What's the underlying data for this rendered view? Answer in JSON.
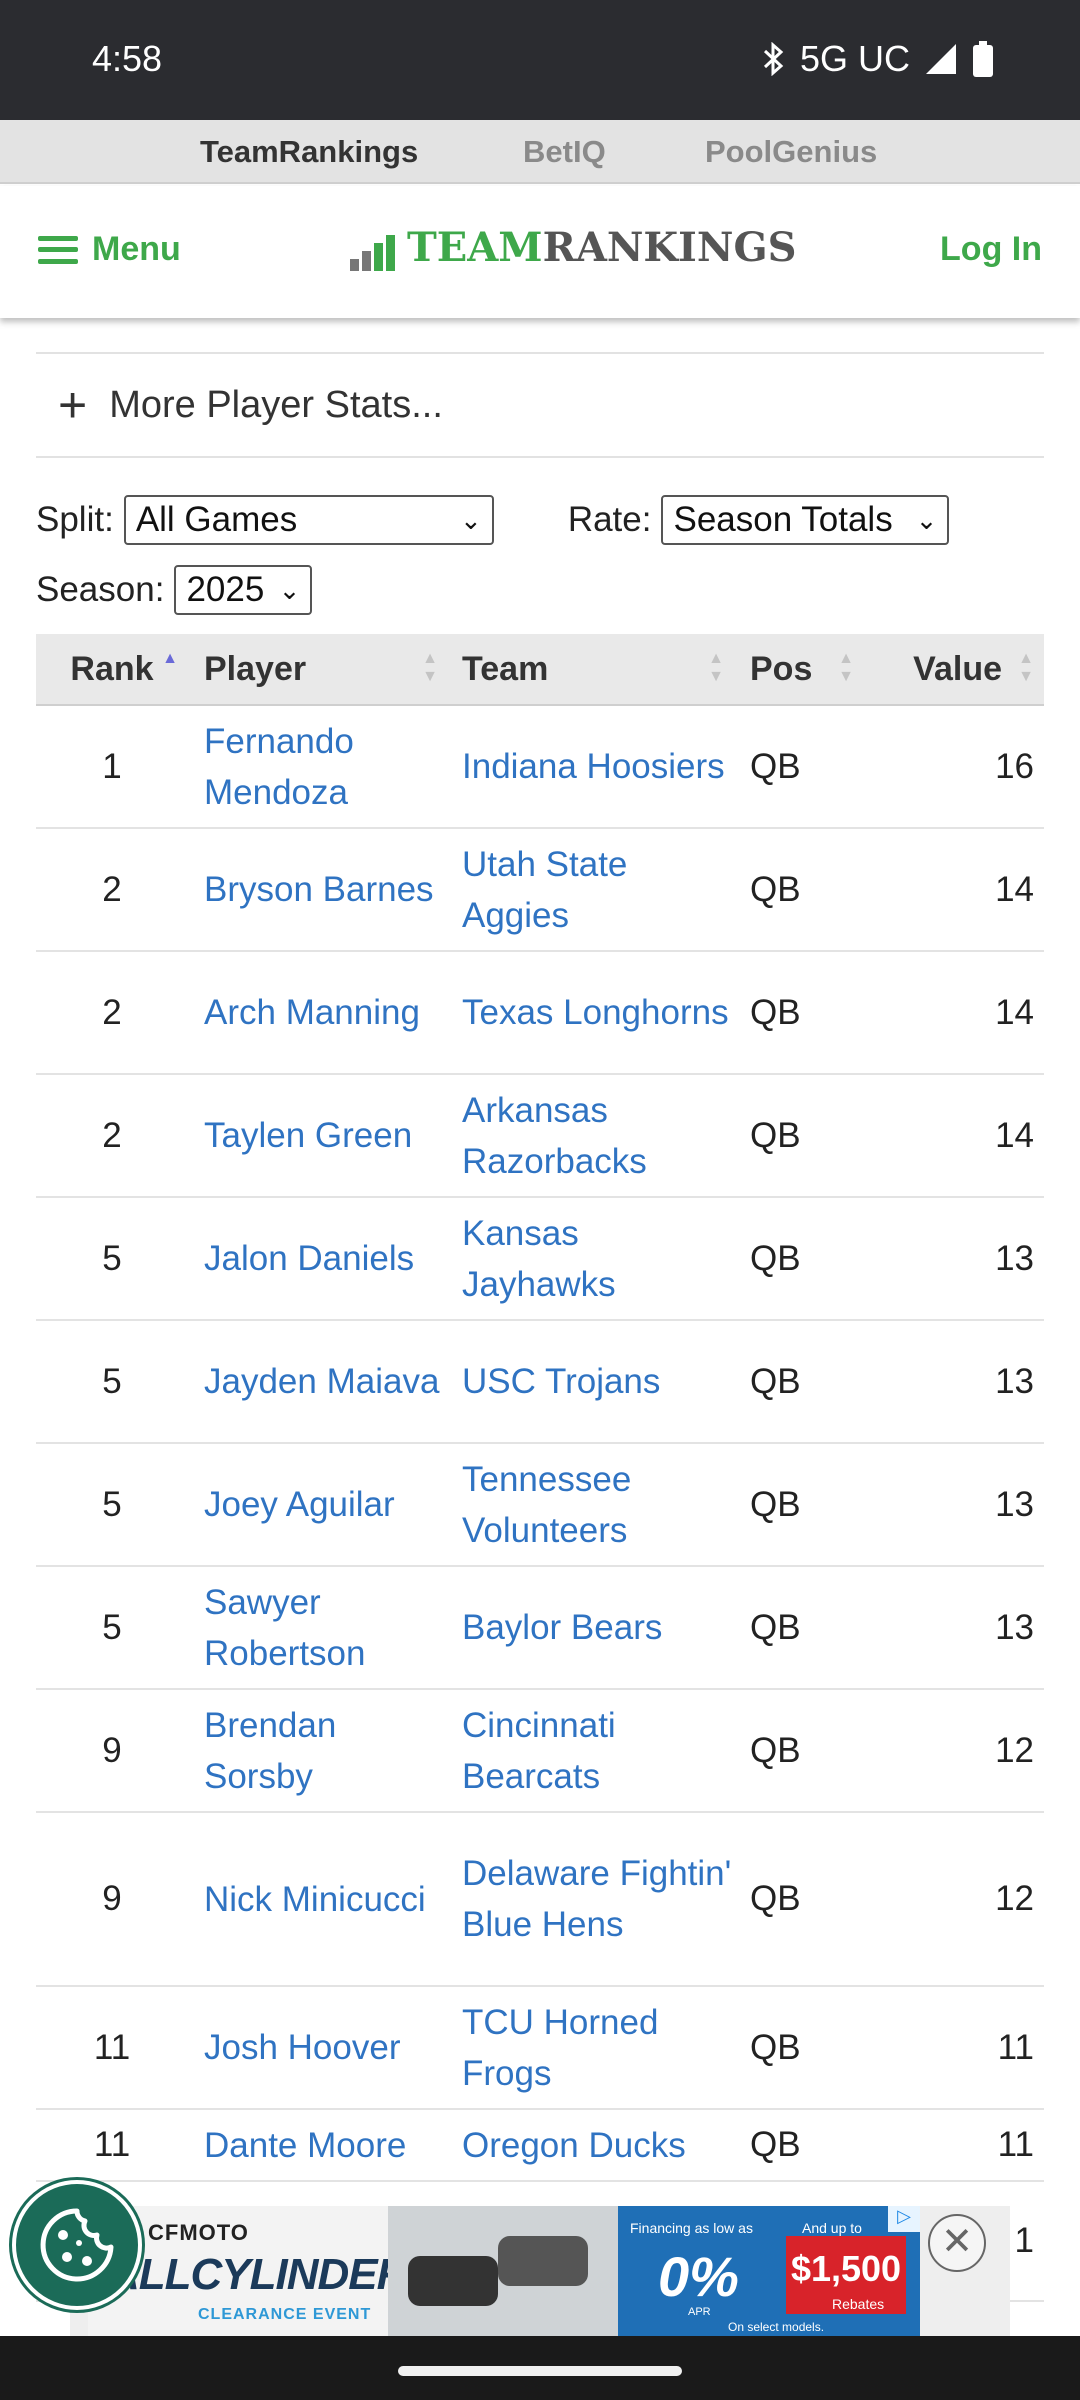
{
  "status": {
    "time": "4:58",
    "network": "5G UC"
  },
  "topnav": {
    "items": [
      "TeamRankings",
      "BetIQ",
      "PoolGenius"
    ]
  },
  "header": {
    "menu_label": "Menu",
    "logo_team": "Team",
    "logo_rankings": "Rankings",
    "login_label": "Log In",
    "brand_color": "#3ea84a"
  },
  "more_stats": {
    "label": "More Player Stats..."
  },
  "filters": {
    "split_label": "Split:",
    "split_value": "All Games",
    "rate_label": "Rate:",
    "rate_value": "Season Totals",
    "season_label": "Season:",
    "season_value": "2025"
  },
  "table": {
    "headers": {
      "rank": "Rank",
      "player": "Player",
      "team": "Team",
      "pos": "Pos",
      "value": "Value"
    },
    "rows": [
      {
        "rank": "1",
        "player": "Fernando Mendoza",
        "team": "Indiana Hoosiers",
        "pos": "QB",
        "value": "16"
      },
      {
        "rank": "2",
        "player": "Bryson Barnes",
        "team": "Utah State Aggies",
        "pos": "QB",
        "value": "14"
      },
      {
        "rank": "2",
        "player": "Arch Manning",
        "team": "Texas Longhorns",
        "pos": "QB",
        "value": "14"
      },
      {
        "rank": "2",
        "player": "Taylen Green",
        "team": "Arkansas Razorbacks",
        "pos": "QB",
        "value": "14"
      },
      {
        "rank": "5",
        "player": "Jalon Daniels",
        "team": "Kansas Jayhawks",
        "pos": "QB",
        "value": "13"
      },
      {
        "rank": "5",
        "player": "Jayden Maiava",
        "team": "USC Trojans",
        "pos": "QB",
        "value": "13"
      },
      {
        "rank": "5",
        "player": "Joey Aguilar",
        "team": "Tennessee Volunteers",
        "pos": "QB",
        "value": "13"
      },
      {
        "rank": "5",
        "player": "Sawyer Robertson",
        "team": "Baylor Bears",
        "pos": "QB",
        "value": "13"
      },
      {
        "rank": "9",
        "player": "Brendan Sorsby",
        "team": "Cincinnati Bearcats",
        "pos": "QB",
        "value": "12"
      },
      {
        "rank": "9",
        "player": "Nick Minicucci",
        "team": "Delaware Fightin' Blue Hens",
        "pos": "QB",
        "value": "12"
      },
      {
        "rank": "11",
        "player": "Josh Hoover",
        "team": "TCU Horned Frogs",
        "pos": "QB",
        "value": "11"
      },
      {
        "rank": "11",
        "player": "Dante Moore",
        "team": "Oregon Ducks",
        "pos": "QB",
        "value": "11"
      },
      {
        "rank": "",
        "player": "",
        "team": "",
        "pos": "",
        "value": "1"
      }
    ]
  },
  "ad": {
    "brand": "CFMOTO",
    "headline": "ALLCYLINDERS",
    "sub": "CLEARANCE EVENT",
    "financing": "Financing as low as",
    "rate": "0%",
    "apr": "APR",
    "rebate_prefix": "And up to",
    "rebate": "$1,500",
    "rebate_suffix": "Rebates",
    "fine_print": "On select models."
  }
}
